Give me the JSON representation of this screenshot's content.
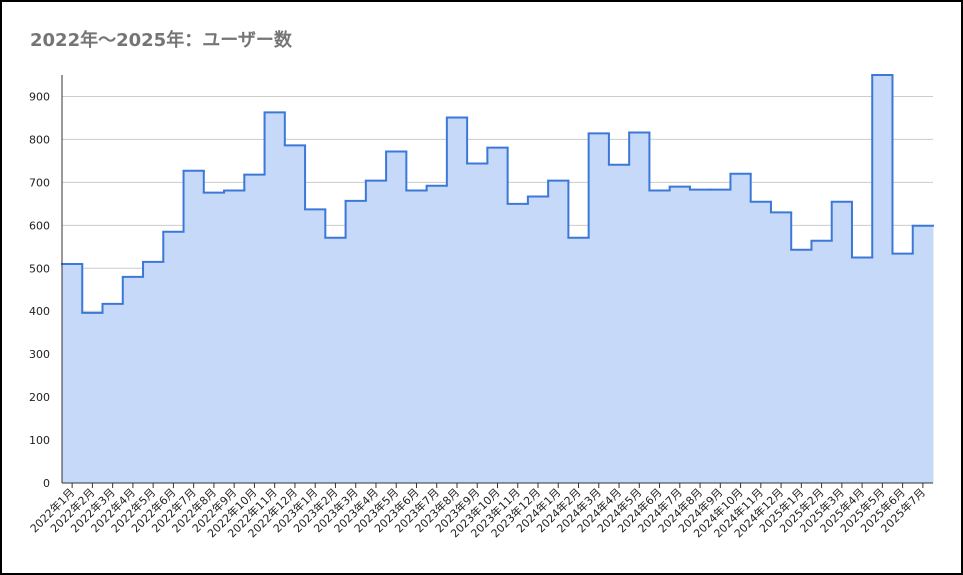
{
  "chart_data": {
    "type": "stepped-area",
    "title": "2022年～2025年：ユーザー数",
    "categories": [
      "2022年1月",
      "2022年2月",
      "2022年3月",
      "2022年4月",
      "2022年5月",
      "2022年6月",
      "2022年7月",
      "2022年8月",
      "2022年9月",
      "2022年10月",
      "2022年11月",
      "2022年12月",
      "2023年1月",
      "2023年2月",
      "2023年3月",
      "2023年4月",
      "2023年5月",
      "2023年6月",
      "2023年7月",
      "2023年8月",
      "2023年9月",
      "2023年10月",
      "2023年11月",
      "2023年12月",
      "2024年1月",
      "2024年2月",
      "2024年3月",
      "2024年4月",
      "2024年5月",
      "2024年6月",
      "2024年7月",
      "2024年8月",
      "2024年9月",
      "2024年10月",
      "2024年11月",
      "2024年12月",
      "2025年1月",
      "2025年2月",
      "2025年3月",
      "2025年4月",
      "2025年5月",
      "2025年6月",
      "2025年7月"
    ],
    "values": [
      510,
      396,
      417,
      480,
      515,
      585,
      727,
      676,
      681,
      718,
      863,
      786,
      637,
      571,
      657,
      704,
      772,
      681,
      692,
      851,
      744,
      781,
      650,
      667,
      704,
      571,
      814,
      741,
      816,
      681,
      690,
      683,
      683,
      720,
      655,
      630,
      543,
      564,
      655,
      525,
      950,
      534,
      599
    ],
    "color": "#3c78d8",
    "fill": "#c6d9f8",
    "ylim": [
      0,
      950
    ],
    "yticks": [
      0,
      100,
      200,
      300,
      400,
      500,
      600,
      700,
      800,
      900
    ],
    "grid": true
  }
}
